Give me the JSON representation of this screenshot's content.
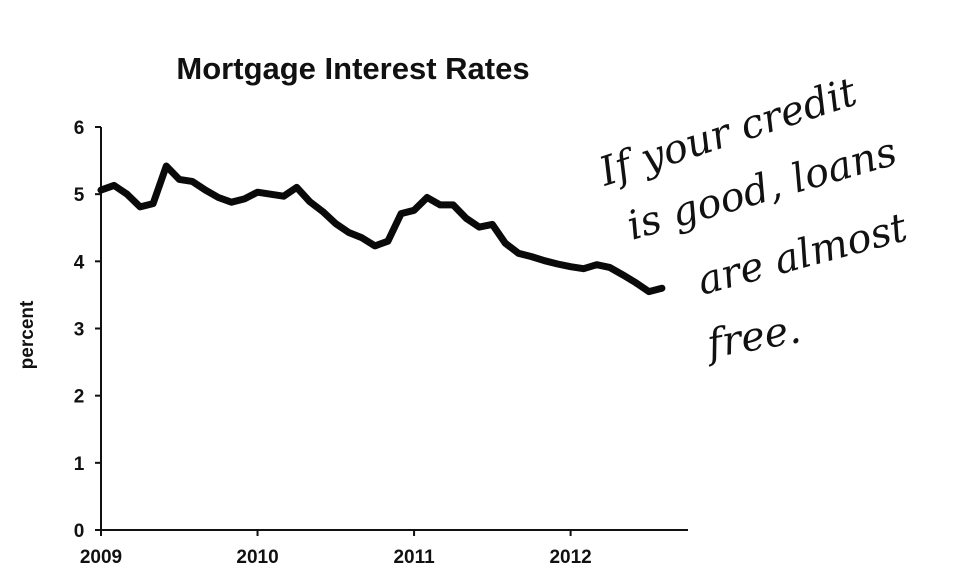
{
  "chart_data": {
    "type": "line",
    "title": "Mortgage Interest Rates",
    "xlabel": "",
    "ylabel": "percent",
    "xlim": [
      2009,
      2012.75
    ],
    "ylim": [
      0,
      6
    ],
    "x_ticks": [
      "2009",
      "2010",
      "2011",
      "2012"
    ],
    "y_ticks": [
      "0",
      "1",
      "2",
      "3",
      "4",
      "5",
      "6"
    ],
    "grid": false,
    "legend": "none",
    "color": "#0a0a0a",
    "series": [
      {
        "x": [
          2009.0,
          2009.083,
          2009.167,
          2009.25,
          2009.333,
          2009.417,
          2009.5,
          2009.583,
          2009.667,
          2009.75,
          2009.833,
          2009.917,
          2010.0,
          2010.083,
          2010.167,
          2010.25,
          2010.333,
          2010.417,
          2010.5,
          2010.583,
          2010.667,
          2010.75,
          2010.833,
          2010.917,
          2011.0,
          2011.083,
          2011.167,
          2011.25,
          2011.333,
          2011.417,
          2011.5,
          2011.583,
          2011.667,
          2011.75,
          2011.833,
          2011.917,
          2012.0,
          2012.083,
          2012.167,
          2012.25,
          2012.333,
          2012.417,
          2012.5,
          2012.583
        ],
        "y": [
          5.06,
          5.13,
          5.0,
          4.81,
          4.86,
          5.42,
          5.22,
          5.19,
          5.06,
          4.95,
          4.88,
          4.93,
          5.03,
          5.0,
          4.97,
          5.1,
          4.89,
          4.74,
          4.56,
          4.43,
          4.35,
          4.23,
          4.3,
          4.71,
          4.76,
          4.95,
          4.84,
          4.84,
          4.64,
          4.51,
          4.55,
          4.27,
          4.12,
          4.07,
          4.01,
          3.96,
          3.92,
          3.89,
          3.95,
          3.91,
          3.8,
          3.68,
          3.55,
          3.6
        ]
      }
    ],
    "annotation": {
      "text_lines": [
        "If your credit",
        "is good, loans",
        "are almost",
        "free."
      ]
    }
  }
}
